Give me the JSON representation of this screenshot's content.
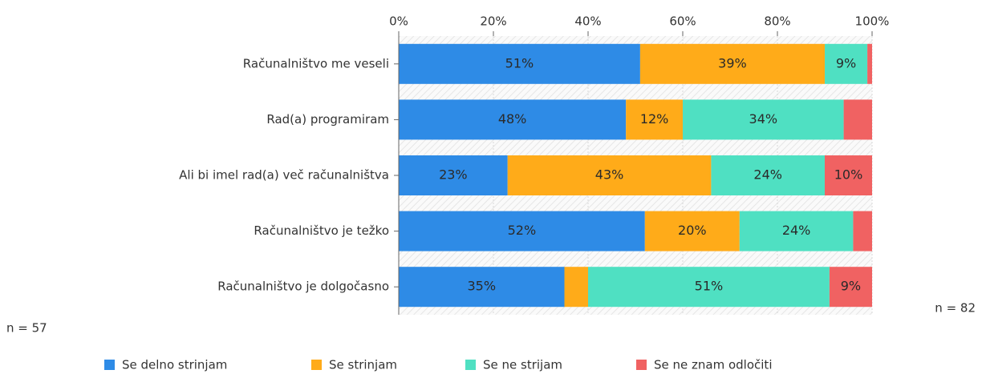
{
  "chart_data": {
    "type": "stacked_barh",
    "categories": [
      "Računalništvo me veseli",
      "Rad(a) programiram",
      "Ali bi imel rad(a) več računalništva",
      "Računalništvo je težko",
      "Računalništvo je dolgočasno"
    ],
    "series": [
      {
        "name": "Se delno strinjam",
        "color": "#2e8be6",
        "values": [
          51,
          48,
          23,
          52,
          35
        ],
        "value_labels": [
          "51%",
          "48%",
          "23%",
          "52%",
          "35%"
        ]
      },
      {
        "name": "Se strinjam",
        "color": "#ffab19",
        "values": [
          39,
          12,
          43,
          20,
          5
        ],
        "value_labels": [
          "39%",
          "12%",
          "43%",
          "20%",
          null
        ]
      },
      {
        "name": "Se ne strijam",
        "color": "#4fe0c2",
        "values": [
          9,
          34,
          24,
          24,
          51
        ],
        "value_labels": [
          "9%",
          "34%",
          "24%",
          "24%",
          "51%"
        ]
      },
      {
        "name": "Se ne znam odločiti",
        "color": "#f06262",
        "values": [
          1,
          6,
          10,
          4,
          9
        ],
        "value_labels": [
          null,
          null,
          "10%",
          null,
          "9%"
        ]
      }
    ],
    "xlim": [
      0,
      100
    ],
    "xticks": [
      {
        "value": 0,
        "label": "0%"
      },
      {
        "value": 20,
        "label": "20%"
      },
      {
        "value": 40,
        "label": "40%"
      },
      {
        "value": 60,
        "label": "60%"
      },
      {
        "value": 80,
        "label": "80%"
      },
      {
        "value": 100,
        "label": "100%"
      }
    ],
    "grid": true,
    "annotations": [
      "n = 57",
      "n = 82"
    ]
  }
}
